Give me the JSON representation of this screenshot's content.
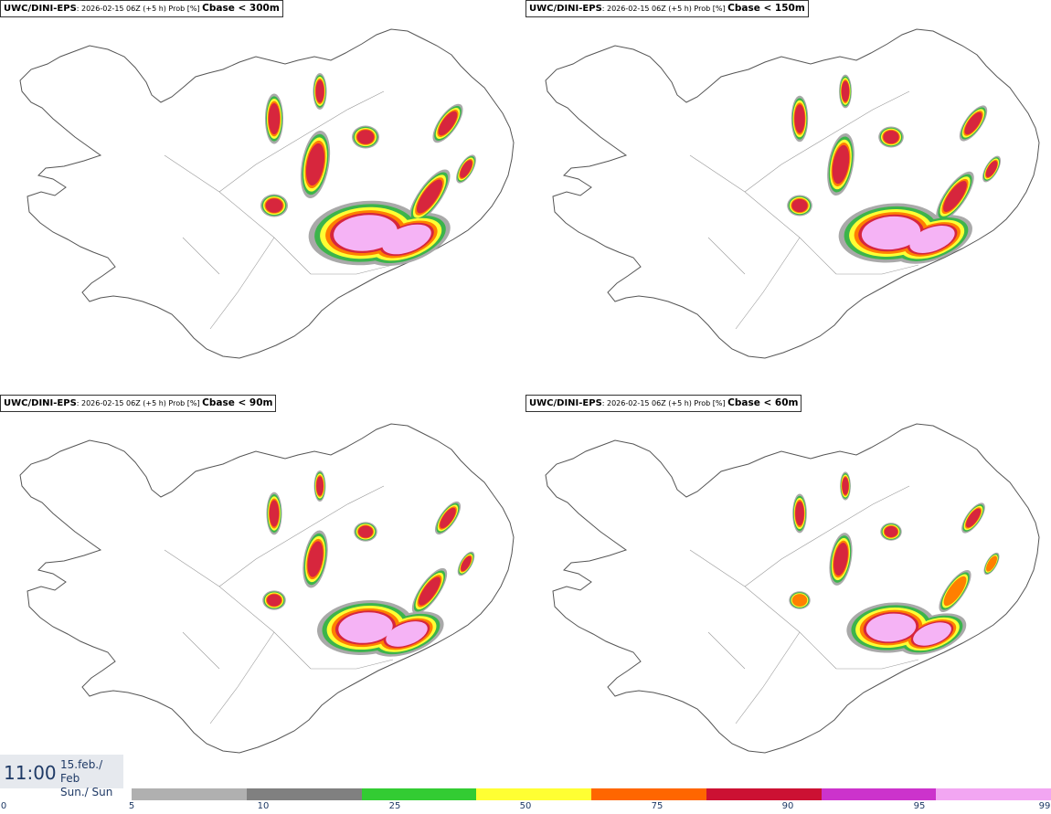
{
  "panels": [
    {
      "model": "UWC/DINI-EPS",
      "meta": ": 2026-02-15 06Z (+5 h) Prob [%] ",
      "variable": "Cbase < 300m"
    },
    {
      "model": "UWC/DINI-EPS",
      "meta": ": 2026-02-15 06Z (+5 h) Prob [%] ",
      "variable": "Cbase < 150m"
    },
    {
      "model": "UWC/DINI-EPS",
      "meta": ": 2026-02-15 06Z (+5 h) Prob [%] ",
      "variable": "Cbase < 90m"
    },
    {
      "model": "UWC/DINI-EPS",
      "meta": ": 2026-02-15 06Z (+5 h) Prob [%] ",
      "variable": "Cbase < 60m"
    }
  ],
  "time": {
    "clock": "11:00",
    "date_line": "15.feb./ Feb",
    "day_line": "Sun./ Sun"
  },
  "legend": {
    "ticks": [
      "0",
      "5",
      "10",
      "25",
      "50",
      "75",
      "90",
      "95",
      "99"
    ],
    "colors": [
      "#b0b0b0",
      "#808080",
      "#33cc33",
      "#ffff33",
      "#ff6600",
      "#cc1133",
      "#cc33cc",
      "#f2a6f2"
    ]
  },
  "map_colors": {
    "gray": "#a9a9a9",
    "green": "#3cb44b",
    "yellow": "#ffff33",
    "orange": "#ff7f00",
    "red": "#d7263d",
    "magenta": "#c83cc8",
    "pink": "#f5b3f5",
    "coast": "#555555"
  }
}
